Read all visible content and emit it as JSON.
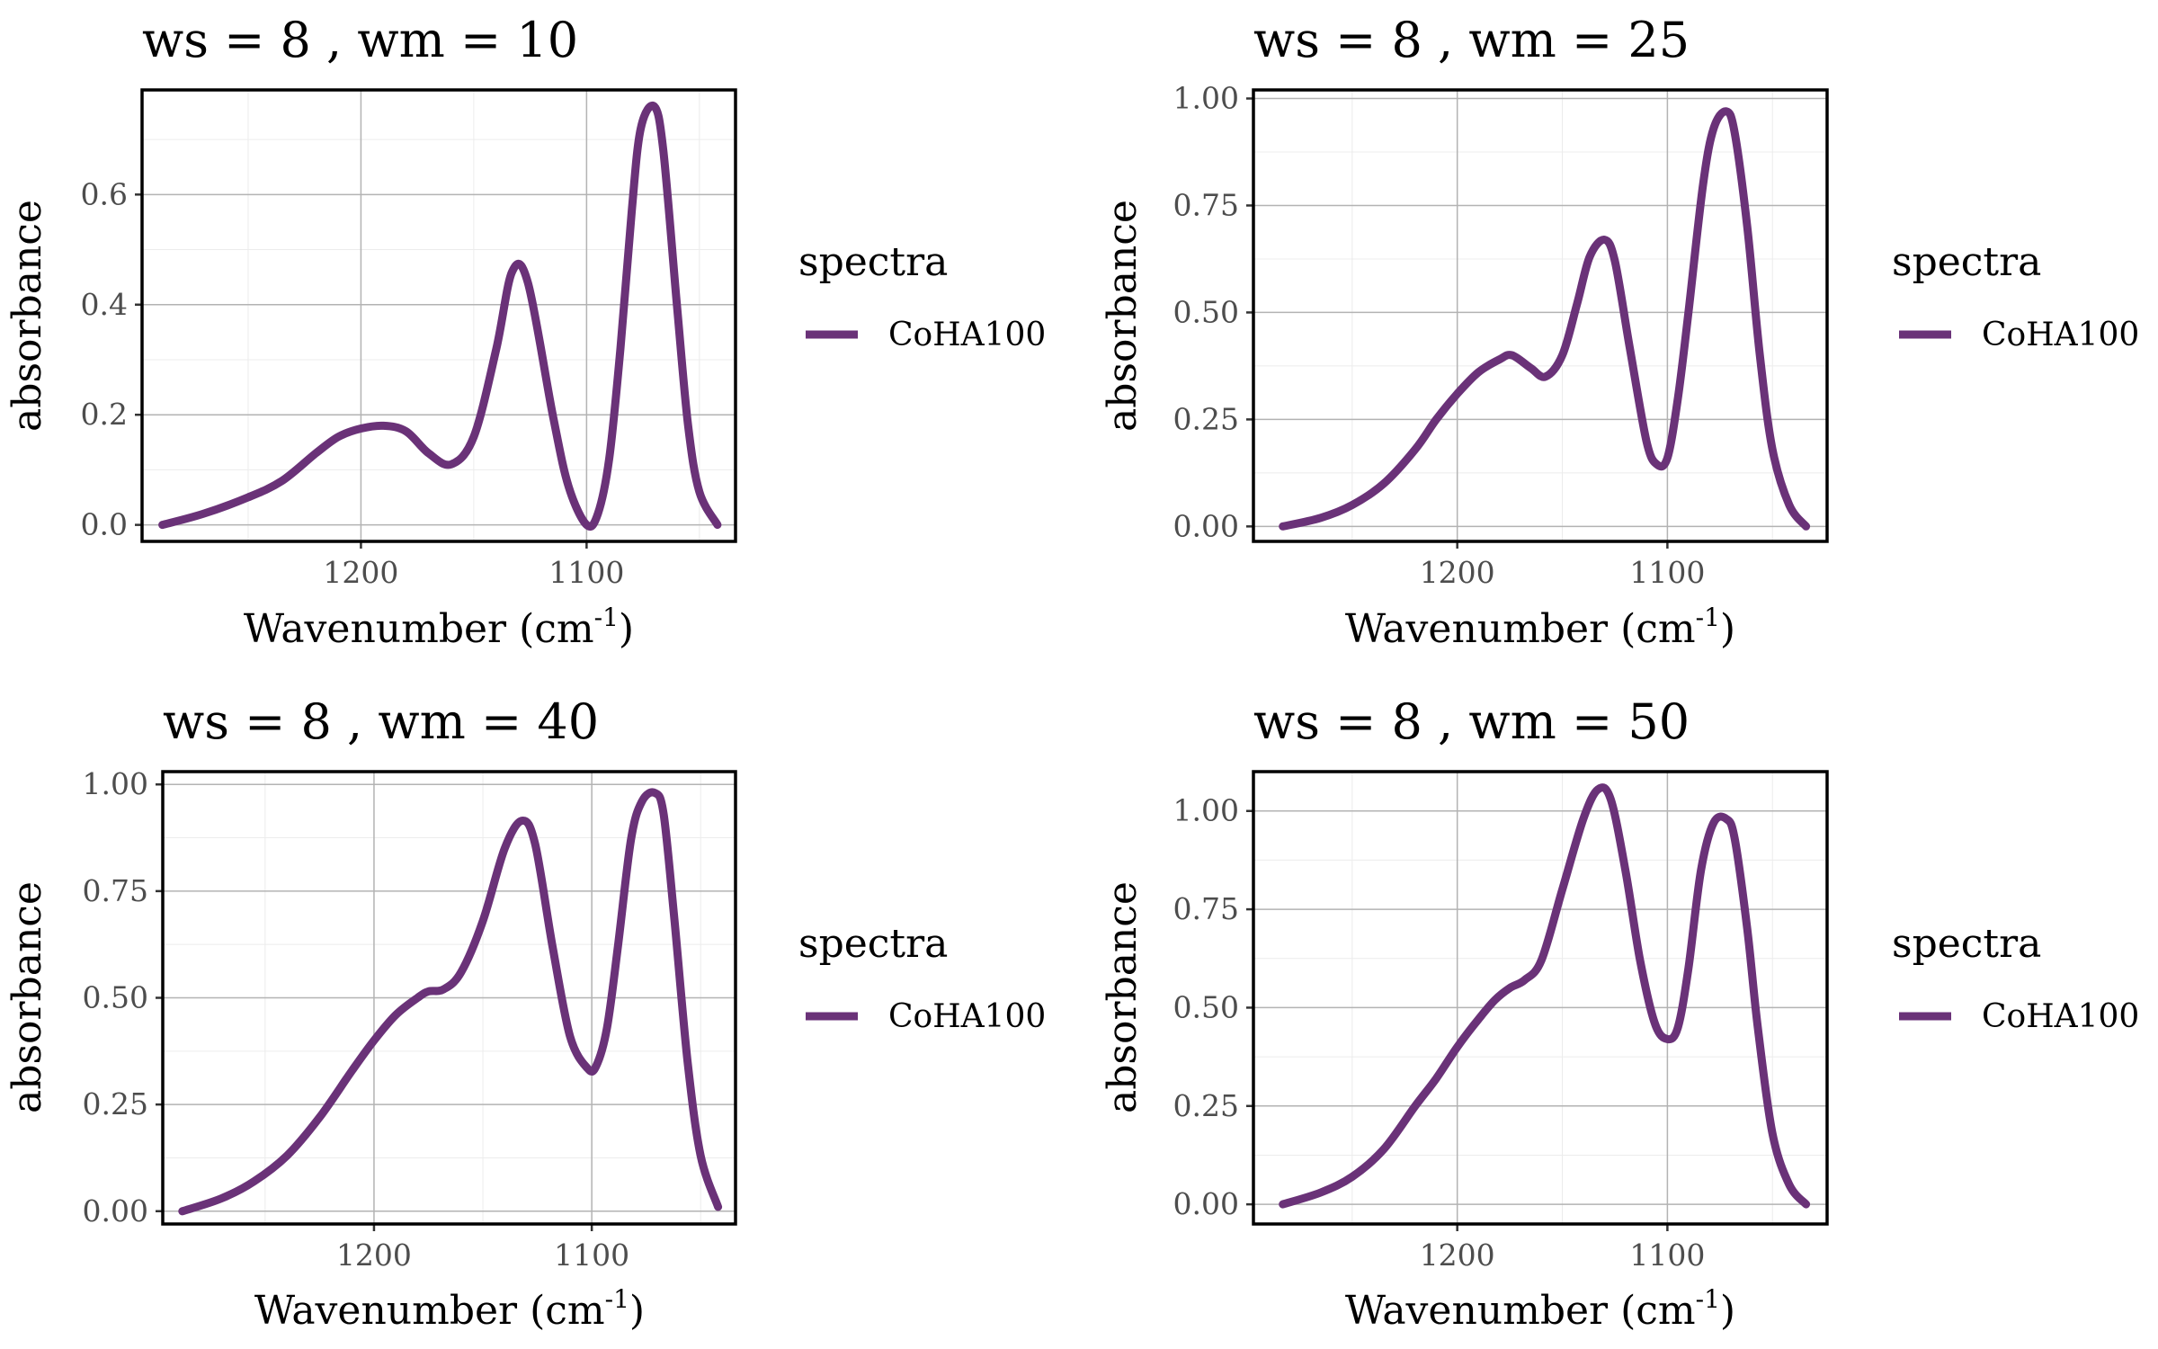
{
  "chart_data": [
    {
      "type": "line",
      "title": "ws = 8 , wm = 10",
      "xlabel": "Wavenumber (cm",
      "xlabel_sup": "-1",
      "xlabel_close": ")",
      "ylabel": "absorbance",
      "x_reversed": true,
      "xlim": [
        1297,
        1034
      ],
      "xticks": [
        1200,
        1100
      ],
      "xtick_labels": [
        "1200",
        "1100"
      ],
      "ylim": [
        -0.03,
        0.79
      ],
      "yticks": [
        0.0,
        0.2,
        0.4,
        0.6
      ],
      "ytick_labels": [
        "0.0",
        "0.2",
        "0.4",
        "0.6"
      ],
      "grid": true,
      "legend": {
        "title": "spectra",
        "position": "right"
      },
      "series": [
        {
          "name": "CoHA100",
          "color": "#6a3278",
          "x": [
            1288,
            1270,
            1250,
            1235,
            1220,
            1210,
            1200,
            1190,
            1180,
            1170,
            1160,
            1150,
            1140,
            1133,
            1126,
            1115,
            1108,
            1100,
            1095,
            1090,
            1085,
            1080,
            1076,
            1070,
            1066,
            1060,
            1055,
            1050,
            1042
          ],
          "y": [
            0.0,
            0.02,
            0.05,
            0.08,
            0.13,
            0.16,
            0.175,
            0.18,
            0.17,
            0.13,
            0.11,
            0.16,
            0.32,
            0.46,
            0.44,
            0.2,
            0.07,
            0.0,
            0.02,
            0.12,
            0.32,
            0.57,
            0.72,
            0.76,
            0.68,
            0.4,
            0.18,
            0.06,
            0.0
          ]
        }
      ]
    },
    {
      "type": "line",
      "title": "ws = 8 , wm = 25",
      "xlabel": "Wavenumber (cm",
      "xlabel_sup": "-1",
      "xlabel_close": ")",
      "ylabel": "absorbance",
      "x_reversed": true,
      "xlim": [
        1297,
        1024
      ],
      "xticks": [
        1200,
        1100
      ],
      "xtick_labels": [
        "1200",
        "1100"
      ],
      "ylim": [
        -0.035,
        1.02
      ],
      "yticks": [
        0.0,
        0.25,
        0.5,
        0.75,
        1.0
      ],
      "ytick_labels": [
        "0.00",
        "0.25",
        "0.50",
        "0.75",
        "1.00"
      ],
      "grid": true,
      "legend": {
        "title": "spectra",
        "position": "right"
      },
      "series": [
        {
          "name": "CoHA100",
          "color": "#6a3278",
          "x": [
            1283,
            1265,
            1250,
            1235,
            1220,
            1210,
            1200,
            1190,
            1180,
            1174,
            1165,
            1158,
            1150,
            1143,
            1137,
            1130,
            1125,
            1118,
            1110,
            1105,
            1100,
            1095,
            1090,
            1083,
            1078,
            1072,
            1068,
            1062,
            1056,
            1050,
            1042,
            1034
          ],
          "y": [
            0.0,
            0.02,
            0.05,
            0.1,
            0.18,
            0.25,
            0.31,
            0.36,
            0.39,
            0.4,
            0.37,
            0.35,
            0.4,
            0.52,
            0.63,
            0.67,
            0.62,
            0.42,
            0.2,
            0.145,
            0.16,
            0.3,
            0.5,
            0.8,
            0.93,
            0.97,
            0.92,
            0.7,
            0.4,
            0.18,
            0.05,
            0.0
          ]
        }
      ]
    },
    {
      "type": "line",
      "title": "ws = 8 , wm = 40",
      "xlabel": "Wavenumber (cm",
      "xlabel_sup": "-1",
      "xlabel_close": ")",
      "ylabel": "absorbance",
      "x_reversed": true,
      "xlim": [
        1297,
        1034
      ],
      "xticks": [
        1200,
        1100
      ],
      "xtick_labels": [
        "1200",
        "1100"
      ],
      "ylim": [
        -0.03,
        1.03
      ],
      "yticks": [
        0.0,
        0.25,
        0.5,
        0.75,
        1.0
      ],
      "ytick_labels": [
        "0.00",
        "0.25",
        "0.50",
        "0.75",
        "1.00"
      ],
      "grid": true,
      "legend": {
        "title": "spectra",
        "position": "right"
      },
      "series": [
        {
          "name": "CoHA100",
          "color": "#6a3278",
          "x": [
            1288,
            1270,
            1255,
            1240,
            1225,
            1210,
            1200,
            1190,
            1180,
            1175,
            1168,
            1160,
            1150,
            1140,
            1132,
            1126,
            1118,
            1110,
            1102,
            1098,
            1093,
            1088,
            1082,
            1077,
            1071,
            1067,
            1062,
            1056,
            1050,
            1042
          ],
          "y": [
            0.0,
            0.03,
            0.07,
            0.13,
            0.22,
            0.33,
            0.4,
            0.46,
            0.5,
            0.515,
            0.52,
            0.56,
            0.68,
            0.85,
            0.915,
            0.86,
            0.62,
            0.41,
            0.335,
            0.34,
            0.43,
            0.62,
            0.87,
            0.96,
            0.98,
            0.93,
            0.68,
            0.35,
            0.13,
            0.01
          ]
        }
      ]
    },
    {
      "type": "line",
      "title": "ws = 8 , wm = 50",
      "xlabel": "Wavenumber (cm",
      "xlabel_sup": "-1",
      "xlabel_close": ")",
      "ylabel": "absorbance",
      "x_reversed": true,
      "xlim": [
        1297,
        1024
      ],
      "xticks": [
        1200,
        1100
      ],
      "xtick_labels": [
        "1200",
        "1100"
      ],
      "ylim": [
        -0.05,
        1.1
      ],
      "yticks": [
        0.0,
        0.25,
        0.5,
        0.75,
        1.0
      ],
      "ytick_labels": [
        "0.00",
        "0.25",
        "0.50",
        "0.75",
        "1.00"
      ],
      "grid": true,
      "legend": {
        "title": "spectra",
        "position": "right"
      },
      "series": [
        {
          "name": "CoHA100",
          "color": "#6a3278",
          "x": [
            1283,
            1265,
            1250,
            1235,
            1220,
            1210,
            1200,
            1190,
            1182,
            1175,
            1168,
            1160,
            1150,
            1140,
            1133,
            1127,
            1120,
            1113,
            1106,
            1100,
            1095,
            1090,
            1084,
            1078,
            1072,
            1068,
            1062,
            1057,
            1050,
            1042,
            1034
          ],
          "y": [
            0.0,
            0.03,
            0.07,
            0.14,
            0.25,
            0.32,
            0.4,
            0.47,
            0.52,
            0.55,
            0.57,
            0.62,
            0.8,
            0.98,
            1.055,
            1.03,
            0.85,
            0.62,
            0.46,
            0.42,
            0.45,
            0.6,
            0.85,
            0.97,
            0.98,
            0.93,
            0.7,
            0.45,
            0.18,
            0.05,
            0.0
          ]
        }
      ]
    }
  ]
}
